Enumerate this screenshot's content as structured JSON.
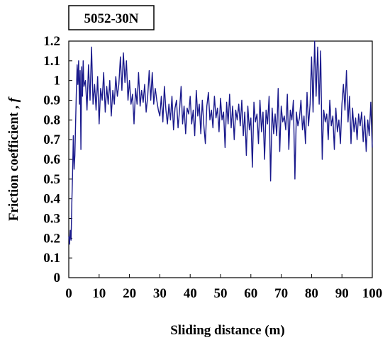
{
  "chart_data": {
    "type": "line",
    "panel_label": "5052-30N",
    "xlabel": "Sliding distance (m)",
    "ylabel_main": "Friction coefficient ,",
    "ylabel_symbol": "f",
    "xlim": [
      0,
      100
    ],
    "ylim": [
      0,
      1.2
    ],
    "xticks": [
      0,
      10,
      20,
      30,
      40,
      50,
      60,
      70,
      80,
      90,
      100
    ],
    "yticks": [
      0,
      0.1,
      0.2,
      0.3,
      0.4,
      0.5,
      0.6,
      0.7,
      0.8,
      0.9,
      1,
      1.1,
      1.2
    ],
    "grid": false,
    "legend": "none",
    "series_color": "#1a1a8c",
    "series": [
      {
        "x": [
          0,
          0.25,
          0.5,
          0.75,
          1,
          1.25,
          1.5,
          1.75,
          2,
          2.25,
          2.5,
          2.75,
          3,
          3.25,
          3.5,
          3.75,
          4,
          4.25,
          4.5,
          4.75,
          5,
          5.5,
          6,
          6.5,
          7,
          7.5,
          8,
          8.5,
          9,
          9.5,
          10,
          10.5,
          11,
          11.5,
          12,
          12.5,
          13,
          13.5,
          14,
          14.5,
          15,
          15.5,
          16,
          16.5,
          17,
          17.5,
          18,
          18.5,
          19,
          19.5,
          20,
          20.5,
          21,
          21.5,
          22,
          22.5,
          23,
          23.5,
          24,
          24.5,
          25,
          25.5,
          26,
          26.5,
          27,
          27.5,
          28,
          28.5,
          29,
          29.5,
          30,
          30.5,
          31,
          31.5,
          32,
          32.5,
          33,
          33.5,
          34,
          34.5,
          35,
          35.5,
          36,
          36.5,
          37,
          37.5,
          38,
          38.5,
          39,
          39.5,
          40,
          40.5,
          41,
          41.5,
          42,
          42.5,
          43,
          43.5,
          44,
          44.5,
          45,
          45.5,
          46,
          46.5,
          47,
          47.5,
          48,
          48.5,
          49,
          49.5,
          50,
          50.5,
          51,
          51.5,
          52,
          52.5,
          53,
          53.5,
          54,
          54.5,
          55,
          55.5,
          56,
          56.5,
          57,
          57.5,
          58,
          58.5,
          59,
          59.5,
          60,
          60.5,
          61,
          61.5,
          62,
          62.5,
          63,
          63.5,
          64,
          64.5,
          65,
          65.5,
          66,
          66.5,
          67,
          67.5,
          68,
          68.5,
          69,
          69.5,
          70,
          70.5,
          71,
          71.5,
          72,
          72.5,
          73,
          73.5,
          74,
          74.5,
          75,
          75.5,
          76,
          76.5,
          77,
          77.5,
          78,
          78.5,
          79,
          79.5,
          80,
          80.5,
          81,
          81.5,
          82,
          82.5,
          83,
          83.5,
          84,
          84.5,
          85,
          85.5,
          86,
          86.5,
          87,
          87.5,
          88,
          88.5,
          89,
          89.5,
          90,
          90.5,
          91,
          91.5,
          92,
          92.5,
          93,
          93.5,
          94,
          94.5,
          95,
          95.5,
          96,
          96.5,
          97,
          97.5,
          98,
          98.5,
          99,
          99.5,
          100
        ],
        "y": [
          0.21,
          0.17,
          0.24,
          0.19,
          0.38,
          0.52,
          0.72,
          0.55,
          0.62,
          0.78,
          0.95,
          1.08,
          0.98,
          1.1,
          0.88,
          1.05,
          0.65,
          1.07,
          0.92,
          1.1,
          0.97,
          1.0,
          0.85,
          1.08,
          0.9,
          1.17,
          0.88,
          0.98,
          0.85,
          1.02,
          0.78,
          0.96,
          0.9,
          1.04,
          0.84,
          0.97,
          0.88,
          1.0,
          0.82,
          0.95,
          0.88,
          1.02,
          0.92,
          0.98,
          1.12,
          0.95,
          1.14,
          0.99,
          1.1,
          0.9,
          1.0,
          0.88,
          0.93,
          0.78,
          0.96,
          0.88,
          1.04,
          0.87,
          0.95,
          0.89,
          0.98,
          0.84,
          0.92,
          1.05,
          0.9,
          1.04,
          0.88,
          0.96,
          0.9,
          0.85,
          0.82,
          0.92,
          0.79,
          0.97,
          0.85,
          0.78,
          0.88,
          0.8,
          0.92,
          0.75,
          0.86,
          0.9,
          0.76,
          0.85,
          0.97,
          0.78,
          0.87,
          0.73,
          0.86,
          0.83,
          0.92,
          0.78,
          0.85,
          0.72,
          0.95,
          0.82,
          0.88,
          0.73,
          0.9,
          0.77,
          0.68,
          0.87,
          0.94,
          0.8,
          0.85,
          0.76,
          0.92,
          0.81,
          0.86,
          0.74,
          0.91,
          0.8,
          0.84,
          0.66,
          0.89,
          0.78,
          0.93,
          0.76,
          0.87,
          0.7,
          0.85,
          0.8,
          0.88,
          0.77,
          0.9,
          0.72,
          0.84,
          0.62,
          0.87,
          0.75,
          0.81,
          0.56,
          0.89,
          0.79,
          0.83,
          0.68,
          0.9,
          0.74,
          0.84,
          0.6,
          0.85,
          0.78,
          0.92,
          0.49,
          0.86,
          0.73,
          0.83,
          0.72,
          0.96,
          0.64,
          0.87,
          0.79,
          0.82,
          0.75,
          0.93,
          0.65,
          0.85,
          0.8,
          0.9,
          0.5,
          0.84,
          0.77,
          0.81,
          0.9,
          0.75,
          0.82,
          0.68,
          0.94,
          0.77,
          0.88,
          1.12,
          0.84,
          1.2,
          0.92,
          1.17,
          0.88,
          1.15,
          0.6,
          0.85,
          0.79,
          0.83,
          0.7,
          0.9,
          0.77,
          0.82,
          0.65,
          0.86,
          0.74,
          0.8,
          0.68,
          0.88,
          0.98,
          0.85,
          1.05,
          0.79,
          0.92,
          0.68,
          0.86,
          0.74,
          0.81,
          0.7,
          0.83,
          0.77,
          0.84,
          0.69,
          0.82,
          0.64,
          0.8,
          0.72,
          0.89,
          0.66
        ]
      }
    ]
  }
}
